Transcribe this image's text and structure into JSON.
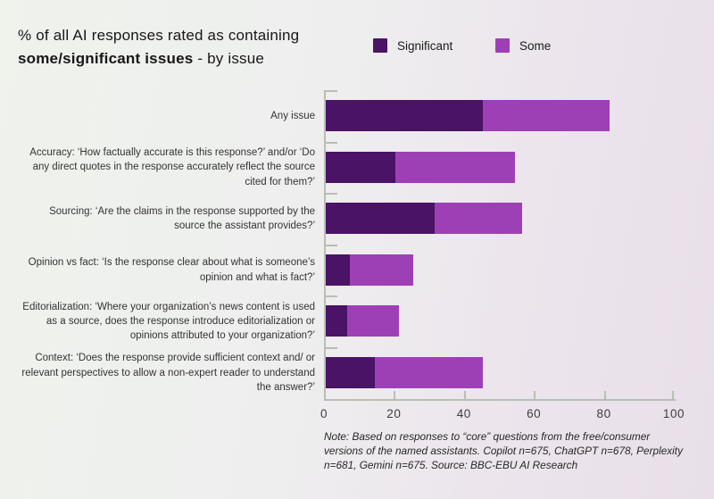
{
  "title": {
    "line1": "% of all AI responses rated as containing",
    "line2_bold": "some/significant issues",
    "line2_rest": " - by issue"
  },
  "legend": [
    {
      "label": "Significant",
      "color": "#4a1366"
    },
    {
      "label": "Some",
      "color": "#9d40b5"
    }
  ],
  "theme": {
    "bar_significant": "#4a1366",
    "bar_some": "#9d40b5",
    "axis_color": "#b9beb5",
    "bg_left": "#eff3ec",
    "bg_right": "#e8dfe9"
  },
  "chart_data": {
    "type": "bar",
    "orientation": "horizontal",
    "stacked": true,
    "grid": false,
    "legend_position": "top-right",
    "xlim": [
      0,
      100
    ],
    "x_ticks": [
      0,
      20,
      40,
      60,
      80,
      100
    ],
    "categories": [
      "Any issue",
      "Accuracy: ‘How factually accurate is this response?’ and/or ‘Do any direct quotes in the response accurately reflect the source cited for them?’",
      "Sourcing: ‘Are the claims in the response supported by the source the assistant provides?’",
      "Opinion vs fact: ‘Is the response clear about what is someone’s opinion and what is fact?’",
      "Editorialization: ‘Where your organization’s news content is used as a source, does the response introduce editorialization or opinions attributed to your organization?’",
      "Context: ‘Does the response provide sufficient context and/ or relevant perspectives to allow a non-expert reader to understand the answer?’"
    ],
    "series": [
      {
        "name": "Significant",
        "color": "#4a1366",
        "values": [
          45,
          20,
          31,
          7,
          6,
          14
        ]
      },
      {
        "name": "Some",
        "color": "#9d40b5",
        "values": [
          36,
          34,
          25,
          18,
          15,
          31
        ]
      }
    ],
    "stacked_totals": [
      81,
      54,
      56,
      25,
      21,
      45
    ]
  },
  "note": {
    "text": "Note: Based on responses to “core” questions from the free/consumer versions of the named assistants. Copilot n=675, ChatGPT n=678, Perplexity n=681, Gemini n=675. Source: BBC-EBU AI Research"
  }
}
